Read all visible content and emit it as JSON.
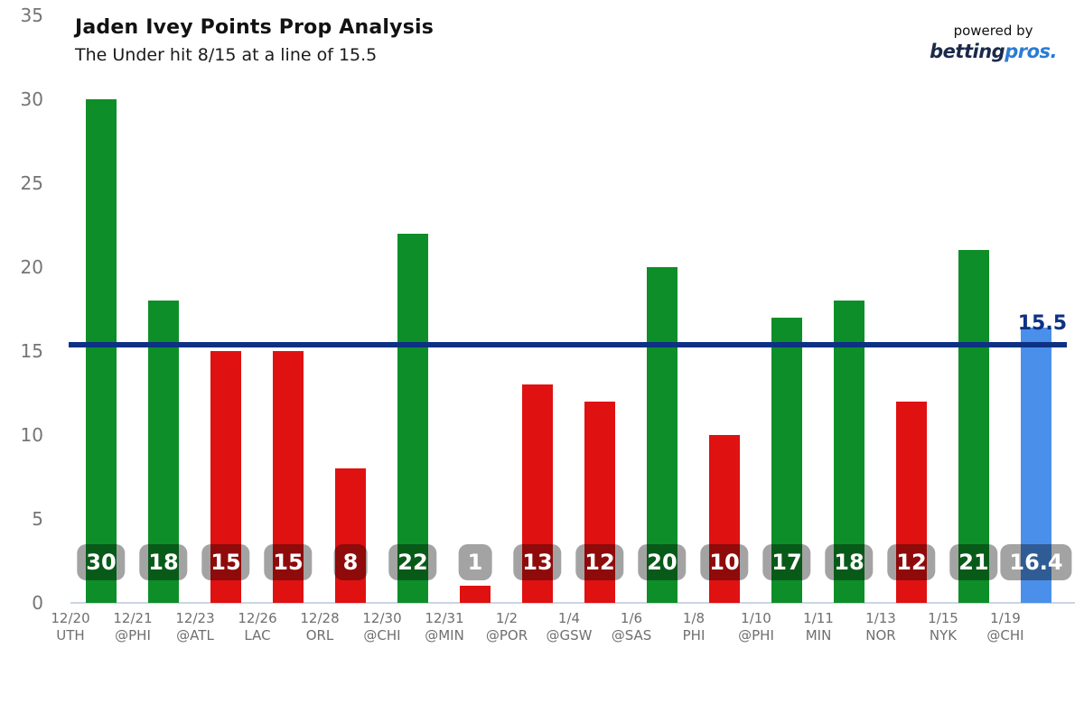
{
  "header": {
    "title": "Jaden Ivey Points Prop Analysis",
    "subtitle": "The Under hit 8/15 at a line of 15.5",
    "powered_by": "powered by",
    "brand_first": "betting",
    "brand_second": "pros",
    "brand_dot": "."
  },
  "chart_data": {
    "type": "bar",
    "title": "Jaden Ivey Points Prop Analysis",
    "subtitle": "The Under hit 8/15 at a line of 15.5",
    "xlabel": "",
    "ylabel": "",
    "ylim": [
      0,
      35
    ],
    "yticks": [
      0,
      5,
      10,
      15,
      20,
      25,
      30,
      35
    ],
    "grid": false,
    "legend_position": "none",
    "prop_line": {
      "value": 15.5,
      "label": "15.5"
    },
    "bars": [
      {
        "date": "12/20",
        "opponent": "UTH",
        "value": 30,
        "label": "30",
        "kind": "over"
      },
      {
        "date": "12/21",
        "opponent": "@PHI",
        "value": 18,
        "label": "18",
        "kind": "over"
      },
      {
        "date": "12/23",
        "opponent": "@ATL",
        "value": 15,
        "label": "15",
        "kind": "under"
      },
      {
        "date": "12/26",
        "opponent": "LAC",
        "value": 15,
        "label": "15",
        "kind": "under"
      },
      {
        "date": "12/28",
        "opponent": "ORL",
        "value": 8,
        "label": "8",
        "kind": "under"
      },
      {
        "date": "12/30",
        "opponent": "@CHI",
        "value": 22,
        "label": "22",
        "kind": "over"
      },
      {
        "date": "12/31",
        "opponent": "@MIN",
        "value": 1,
        "label": "1",
        "kind": "under"
      },
      {
        "date": "1/2",
        "opponent": "@POR",
        "value": 13,
        "label": "13",
        "kind": "under"
      },
      {
        "date": "1/4",
        "opponent": "@GSW",
        "value": 12,
        "label": "12",
        "kind": "under"
      },
      {
        "date": "1/6",
        "opponent": "@SAS",
        "value": 20,
        "label": "20",
        "kind": "over"
      },
      {
        "date": "1/8",
        "opponent": "PHI",
        "value": 10,
        "label": "10",
        "kind": "under"
      },
      {
        "date": "1/10",
        "opponent": "@PHI",
        "value": 17,
        "label": "17",
        "kind": "over"
      },
      {
        "date": "1/11",
        "opponent": "MIN",
        "value": 18,
        "label": "18",
        "kind": "over"
      },
      {
        "date": "1/13",
        "opponent": "NOR",
        "value": 12,
        "label": "12",
        "kind": "under"
      },
      {
        "date": "1/15",
        "opponent": "NYK",
        "value": 21,
        "label": "21",
        "kind": "over"
      },
      {
        "date": "1/19",
        "opponent": "@CHI",
        "value": 16.4,
        "label": "16.4",
        "kind": "projection"
      }
    ],
    "colors": {
      "over": "#0e8e28",
      "under": "#e01111",
      "projection": "#4a90ea",
      "prop_line": "#0d3183",
      "axis_line": "#ccd5e3",
      "tick_text": "#757575",
      "badge_overlay": "rgba(0,0,0,0.36)",
      "badge_text": "#ffffff",
      "brand_dark": "#1b2a4a",
      "brand_blue": "#2b7cd3"
    }
  }
}
